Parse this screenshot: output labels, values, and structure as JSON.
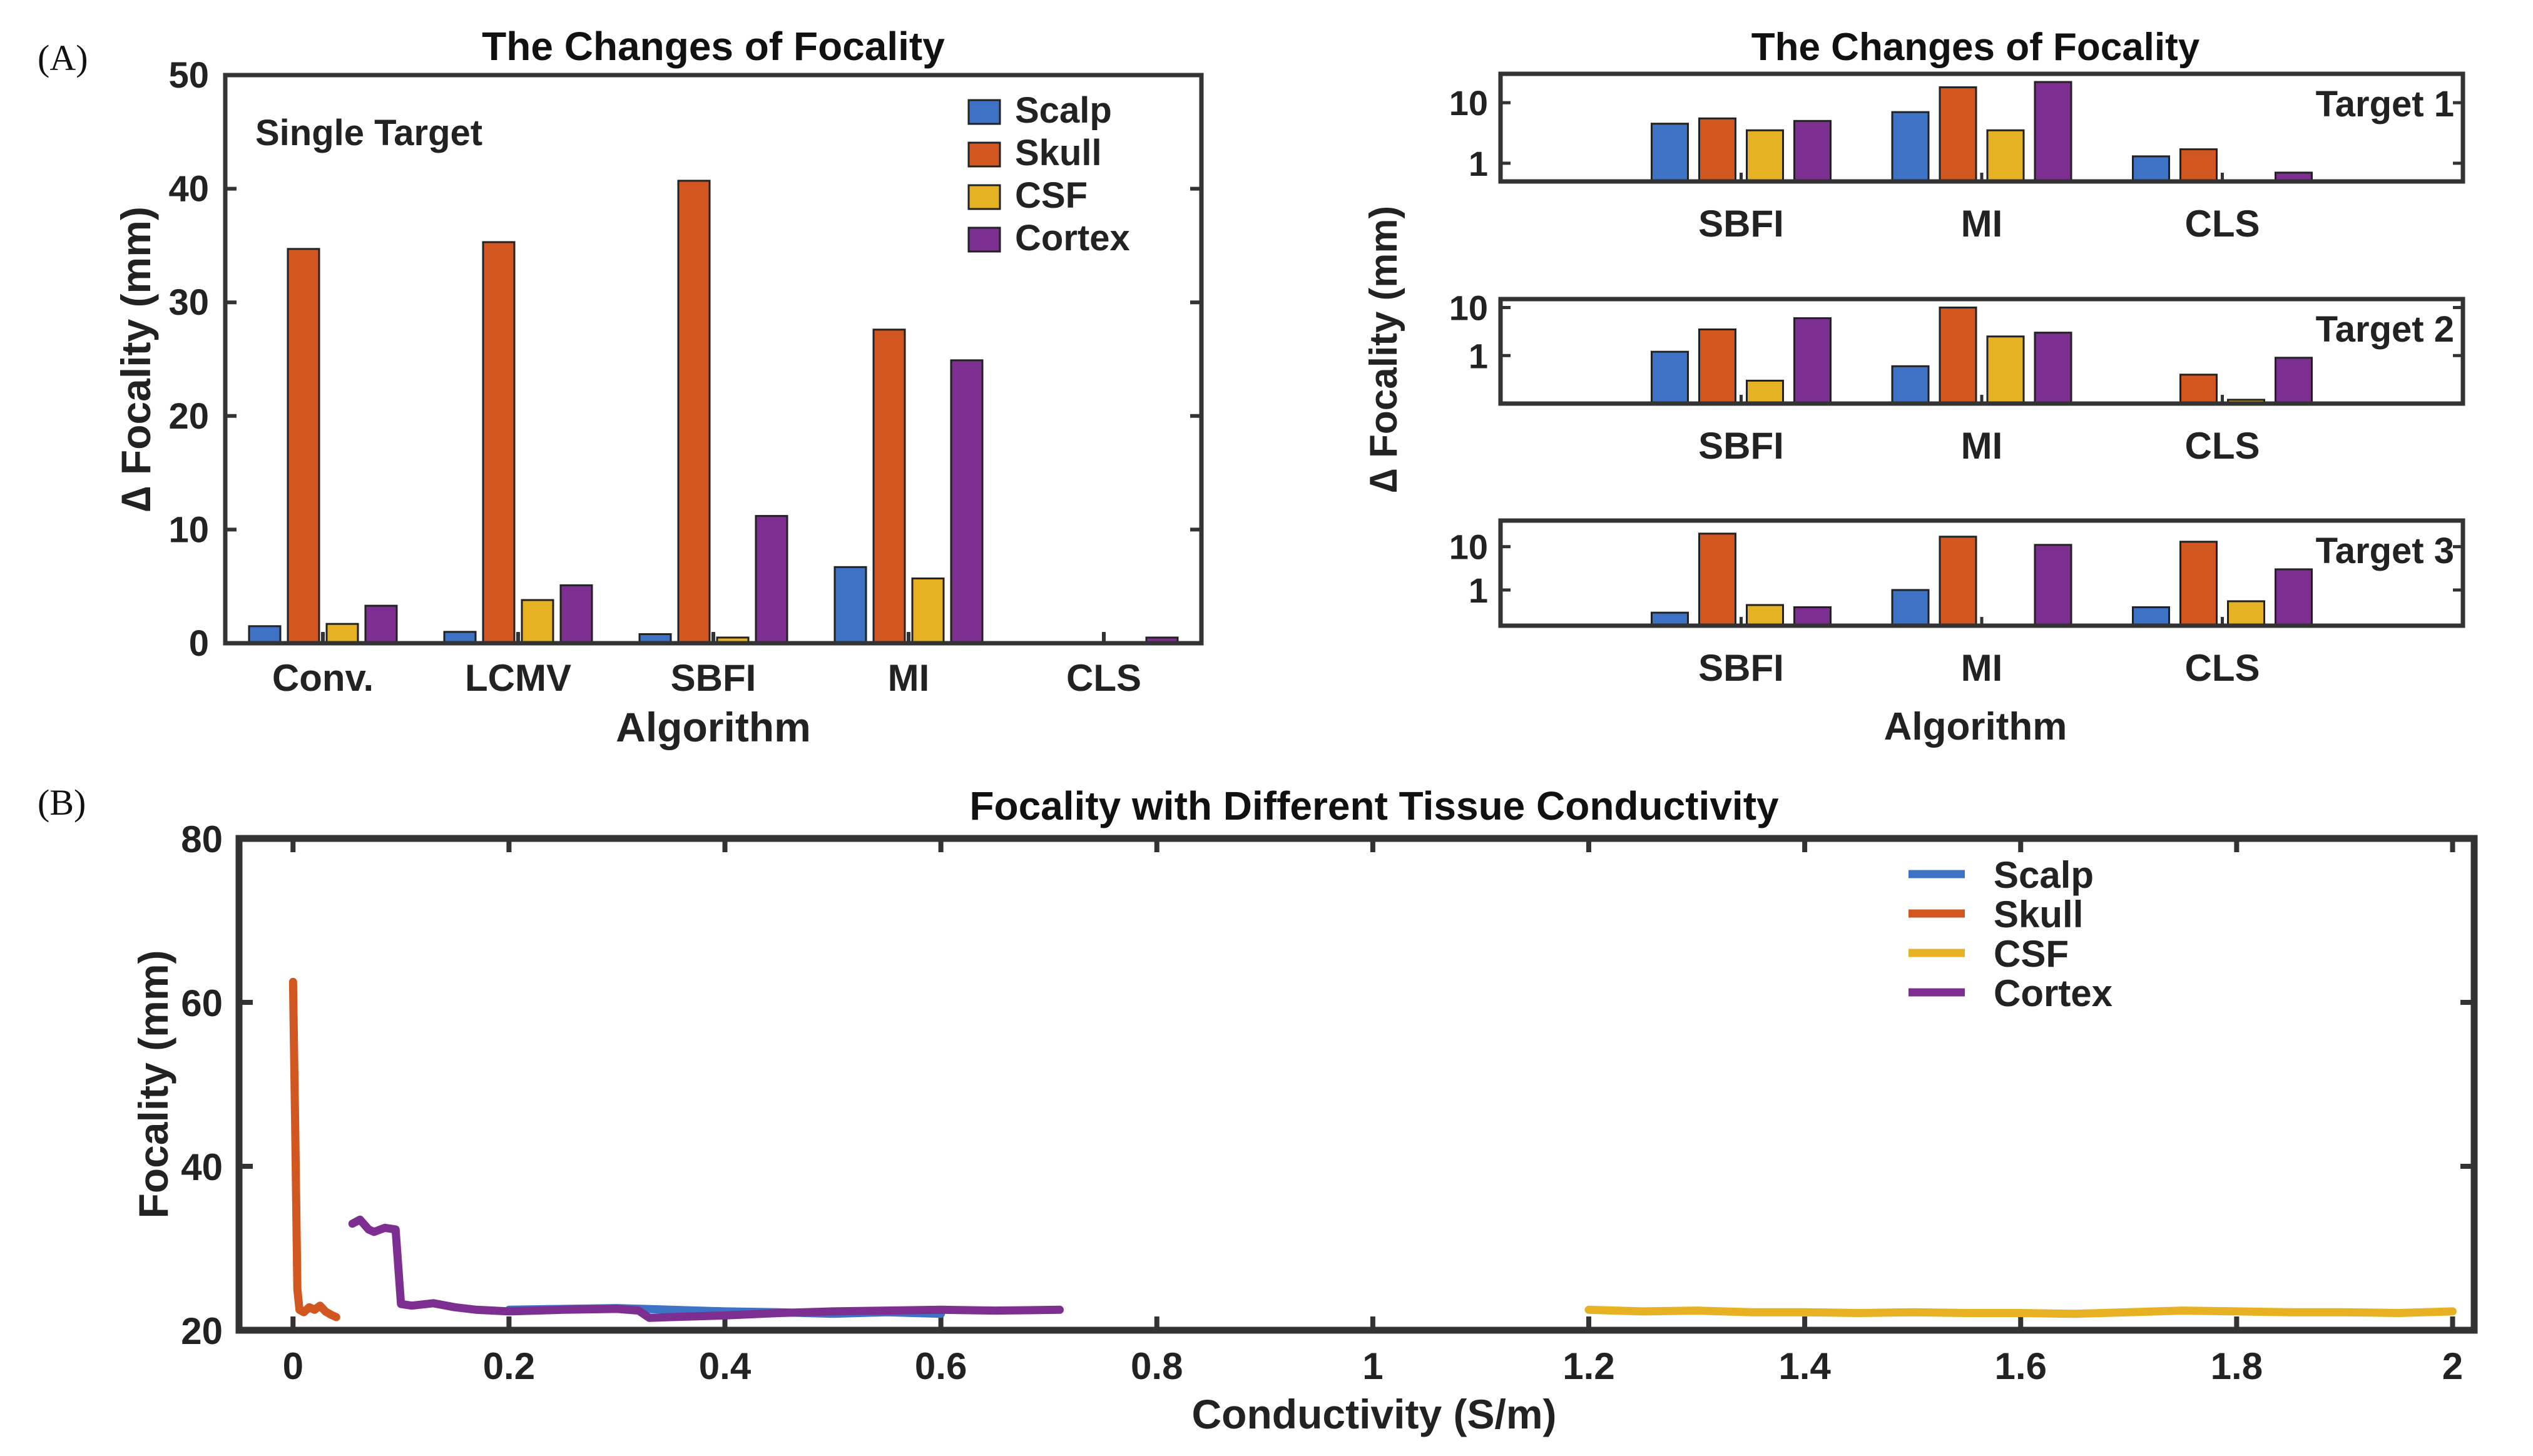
{
  "colors": {
    "Scalp": "#3d72c4",
    "Skull": "#d1561f",
    "CSF": "#e6b223",
    "Cortex": "#7d2e91",
    "axis": "#333333"
  },
  "panel_labels": {
    "a": "(A)",
    "b": "(B)"
  },
  "chart_data": [
    {
      "type": "bar",
      "title": "The Changes of Focality",
      "annotation": "Single Target",
      "xlabel": "Algorithm",
      "ylabel": "∆ Focality (mm)",
      "ylim": [
        0,
        50
      ],
      "yticks": [
        0,
        10,
        20,
        30,
        40,
        50
      ],
      "legend_position": "top-right",
      "categories": [
        "Conv.",
        "LCMV",
        "SBFI",
        "MI",
        "CLS"
      ],
      "series": [
        {
          "name": "Scalp",
          "values": [
            1.5,
            1.0,
            0.8,
            6.7,
            0.1
          ]
        },
        {
          "name": "Skull",
          "values": [
            34.7,
            35.3,
            40.7,
            27.6,
            0.1
          ]
        },
        {
          "name": "CSF",
          "values": [
            1.7,
            3.8,
            0.5,
            5.7,
            0.1
          ]
        },
        {
          "name": "Cortex",
          "values": [
            3.3,
            5.1,
            11.2,
            24.9,
            0.5
          ]
        }
      ]
    },
    {
      "type": "bar",
      "title": "The Changes of Focality",
      "xlabel": "Algorithm",
      "ylabel": "∆ Focality (mm)",
      "yscale": "log",
      "categories": [
        "SBFI",
        "MI",
        "CLS"
      ],
      "subplots": [
        {
          "label": "Target 1",
          "ylim": [
            0.5,
            30
          ],
          "yticks": [
            "1",
            "10"
          ],
          "series": [
            {
              "name": "Scalp",
              "values": [
                4.5,
                7.0,
                1.3
              ]
            },
            {
              "name": "Skull",
              "values": [
                5.5,
                18.0,
                1.7
              ]
            },
            {
              "name": "CSF",
              "values": [
                3.5,
                3.5,
                0.4
              ]
            },
            {
              "name": "Cortex",
              "values": [
                5.0,
                22.0,
                0.7
              ]
            }
          ]
        },
        {
          "label": "Target 2",
          "ylim": [
            0.1,
            15
          ],
          "yticks": [
            "1",
            "10"
          ],
          "series": [
            {
              "name": "Scalp",
              "values": [
                1.2,
                0.6,
                0.08
              ]
            },
            {
              "name": "Skull",
              "values": [
                3.5,
                10.0,
                0.4
              ]
            },
            {
              "name": "CSF",
              "values": [
                0.3,
                2.5,
                0.12
              ]
            },
            {
              "name": "Cortex",
              "values": [
                6.0,
                3.0,
                0.9
              ]
            }
          ]
        },
        {
          "label": "Target 3",
          "ylim": [
            0.15,
            40
          ],
          "yticks": [
            "1",
            "10"
          ],
          "series": [
            {
              "name": "Scalp",
              "values": [
                0.3,
                1.0,
                0.4
              ]
            },
            {
              "name": "Skull",
              "values": [
                20.0,
                17.0,
                13.0
              ]
            },
            {
              "name": "CSF",
              "values": [
                0.45,
                0.1,
                0.55
              ]
            },
            {
              "name": "Cortex",
              "values": [
                0.4,
                11.0,
                3.0
              ]
            }
          ]
        }
      ]
    },
    {
      "type": "line",
      "title": "Focality with Different Tissue Conductivity",
      "xlabel": "Conductivity (S/m)",
      "ylabel": "Focality (mm)",
      "xlim": [
        -0.05,
        2.02
      ],
      "ylim": [
        20,
        80
      ],
      "xticks": [
        0,
        0.2,
        0.4,
        0.6,
        0.8,
        1,
        1.2,
        1.4,
        1.6,
        1.8,
        2
      ],
      "yticks": [
        20,
        40,
        60,
        80
      ],
      "legend_position": "top-right",
      "series": [
        {
          "name": "Scalp",
          "x": [
            0.2,
            0.25,
            0.3,
            0.35,
            0.4,
            0.45,
            0.5,
            0.55,
            0.6
          ],
          "y": [
            22.5,
            22.6,
            22.7,
            22.5,
            22.3,
            22.2,
            22.0,
            22.2,
            22.0
          ]
        },
        {
          "name": "Skull",
          "x": [
            0.0,
            0.002,
            0.004,
            0.006,
            0.01,
            0.015,
            0.02,
            0.025,
            0.03,
            0.035,
            0.04
          ],
          "y": [
            62.5,
            45,
            25,
            22.5,
            22.2,
            22.8,
            22.5,
            23.0,
            22.3,
            21.9,
            21.6
          ]
        },
        {
          "name": "CSF",
          "x": [
            1.2,
            1.25,
            1.3,
            1.35,
            1.4,
            1.45,
            1.5,
            1.55,
            1.6,
            1.65,
            1.7,
            1.75,
            1.8,
            1.85,
            1.9,
            1.95,
            2.0
          ],
          "y": [
            22.5,
            22.3,
            22.4,
            22.2,
            22.2,
            22.1,
            22.2,
            22.1,
            22.1,
            22.0,
            22.2,
            22.4,
            22.3,
            22.2,
            22.2,
            22.1,
            22.3
          ]
        },
        {
          "name": "Cortex",
          "x": [
            0.055,
            0.062,
            0.07,
            0.075,
            0.085,
            0.095,
            0.1,
            0.11,
            0.13,
            0.15,
            0.17,
            0.2,
            0.25,
            0.3,
            0.32,
            0.33,
            0.35,
            0.4,
            0.45,
            0.5,
            0.55,
            0.6,
            0.65,
            0.71
          ],
          "y": [
            33.0,
            33.5,
            32.3,
            32.0,
            32.5,
            32.3,
            23.2,
            23.0,
            23.3,
            22.8,
            22.5,
            22.3,
            22.5,
            22.6,
            22.4,
            21.5,
            21.6,
            21.8,
            22.1,
            22.3,
            22.4,
            22.5,
            22.4,
            22.5
          ]
        }
      ]
    }
  ]
}
